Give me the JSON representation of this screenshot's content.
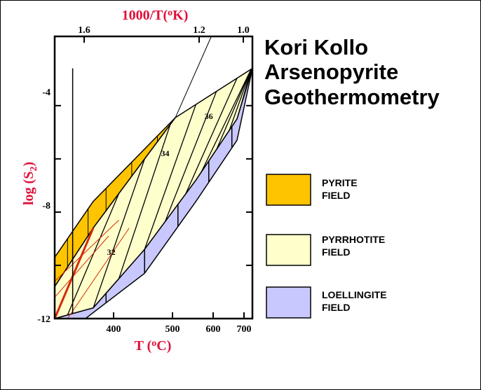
{
  "title_lines": [
    "Kori Kollo",
    "Arsenopyrite",
    "Geothermometry"
  ],
  "colors": {
    "pyrite": "#ffc400",
    "pyrrhotite": "#ffffcc",
    "loellingite": "#c8c8ff",
    "red_lines": "#d42a0a",
    "axis_title": "#e0103a"
  },
  "legend": [
    {
      "line1": "PYRITE",
      "line2": "FIELD",
      "color_key": "pyrite"
    },
    {
      "line1": "PYRRHOTITE",
      "line2": "FIELD",
      "color_key": "pyrrhotite"
    },
    {
      "line1": "LOELLINGITE",
      "line2": "FIELD",
      "color_key": "loellingite"
    }
  ],
  "chart_data": {
    "type": "area",
    "xlabel": "T (oC)",
    "ylabel": "log (S2)",
    "top_xlabel": "1000/T(oK)",
    "x_ticks": [
      "400",
      "500",
      "600",
      "700"
    ],
    "top_ticks": [
      "1.6",
      "1.2",
      "1.0"
    ],
    "y_ticks": [
      "-4",
      "-8",
      "-12"
    ],
    "ylim": [
      -12,
      -1.4
    ],
    "x_reciprocal_range": [
      1.75,
      0.98
    ],
    "grid": false,
    "fields": [
      {
        "name": "PYRITE",
        "color_key": "pyrite",
        "upper": [
          [
            1.75,
            -9.7
          ],
          [
            1.6,
            -7.6
          ],
          [
            1.28,
            -4.45
          ]
        ],
        "lower": [
          [
            1.75,
            -10.8
          ],
          [
            1.6,
            -8.6
          ],
          [
            1.28,
            -4.45
          ]
        ]
      },
      {
        "name": "PYRRHOTITE",
        "color_key": "pyrrhotite",
        "upper": [
          [
            1.75,
            -10.8
          ],
          [
            1.6,
            -8.6
          ],
          [
            1.28,
            -4.45
          ],
          [
            0.98,
            -2.6
          ]
        ],
        "lower": [
          [
            1.75,
            -12.0
          ],
          [
            1.6,
            -11.6
          ],
          [
            1.4,
            -9.4
          ],
          [
            1.2,
            -6.8
          ],
          [
            1.04,
            -4.5
          ],
          [
            0.98,
            -2.6
          ]
        ]
      },
      {
        "name": "LOELLINGITE",
        "color_key": "loellingite",
        "upper": [
          [
            1.75,
            -12.0
          ],
          [
            1.6,
            -11.6
          ],
          [
            1.4,
            -9.4
          ],
          [
            1.2,
            -6.8
          ],
          [
            1.04,
            -4.5
          ],
          [
            0.98,
            -2.6
          ]
        ],
        "lower": [
          [
            1.63,
            -12.0
          ],
          [
            1.4,
            -10.3
          ],
          [
            1.2,
            -7.6
          ],
          [
            1.04,
            -5.3
          ],
          [
            0.98,
            -2.6
          ]
        ]
      }
    ],
    "contour_labels": [
      {
        "text": "32",
        "x": 1.53,
        "y": -9.6
      },
      {
        "text": "34",
        "x": 1.32,
        "y": -5.9
      },
      {
        "text": "36",
        "x": 1.15,
        "y": -4.5
      }
    ]
  }
}
